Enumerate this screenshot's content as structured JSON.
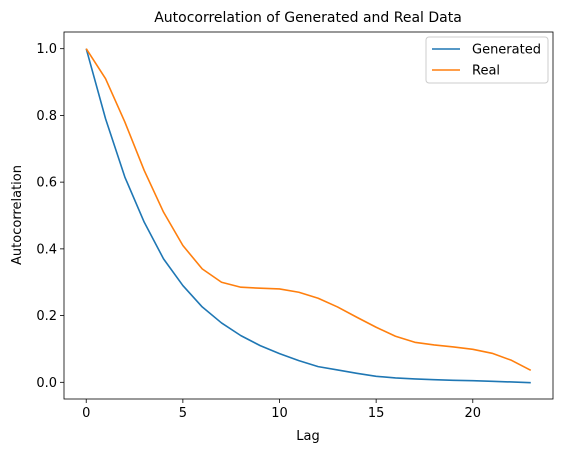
{
  "chart_data": {
    "type": "line",
    "title": "Autocorrelation of Generated and Real Data",
    "xlabel": "Lag",
    "ylabel": "Autocorrelation",
    "xlim": [
      -1.15,
      24.15
    ],
    "ylim": [
      -0.05,
      1.05
    ],
    "xticks": [
      0,
      5,
      10,
      15,
      20
    ],
    "yticks": [
      0.0,
      0.2,
      0.4,
      0.6,
      0.8,
      1.0
    ],
    "xtick_labels": [
      "0",
      "5",
      "10",
      "15",
      "20"
    ],
    "ytick_labels": [
      "0.0",
      "0.2",
      "0.4",
      "0.6",
      "0.8",
      "1.0"
    ],
    "grid": false,
    "legend_position": "top-right",
    "x": [
      0,
      1,
      2,
      3,
      4,
      5,
      6,
      7,
      8,
      9,
      10,
      11,
      12,
      13,
      14,
      15,
      16,
      17,
      18,
      19,
      20,
      21,
      22,
      23
    ],
    "series": [
      {
        "name": "Generated",
        "color": "#1f77b4",
        "values": [
          1.0,
          0.79,
          0.615,
          0.48,
          0.37,
          0.29,
          0.226,
          0.178,
          0.14,
          0.11,
          0.086,
          0.065,
          0.047,
          0.037,
          0.027,
          0.018,
          0.013,
          0.01,
          0.008,
          0.006,
          0.005,
          0.003,
          0.001,
          -0.001
        ]
      },
      {
        "name": "Real",
        "color": "#ff7f0e",
        "values": [
          1.0,
          0.91,
          0.78,
          0.635,
          0.51,
          0.41,
          0.34,
          0.3,
          0.285,
          0.282,
          0.28,
          0.27,
          0.252,
          0.226,
          0.195,
          0.165,
          0.138,
          0.12,
          0.112,
          0.106,
          0.099,
          0.087,
          0.066,
          0.036
        ]
      }
    ]
  }
}
